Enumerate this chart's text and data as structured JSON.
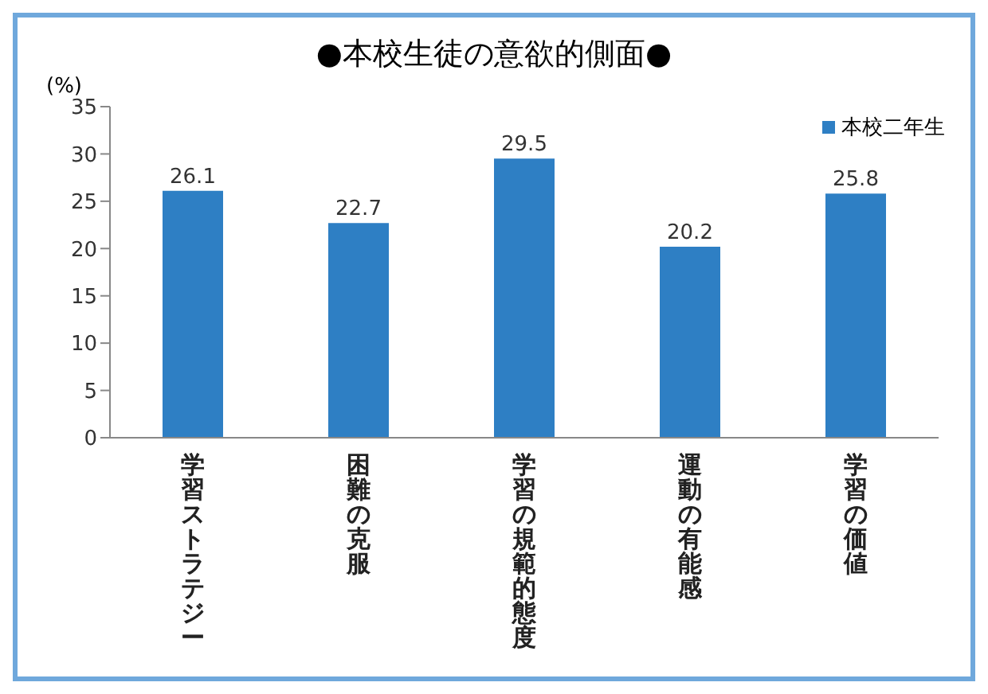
{
  "chart_data": {
    "type": "bar",
    "title": "●本校生徒の意欲的側面●",
    "ylabel": "(%)",
    "categories": [
      "学習ストラテジー",
      "困難の克服",
      "学習の規範的態度",
      "運動の有能感",
      "学習の価値"
    ],
    "series": [
      {
        "name": "本校二年生",
        "color": "#2e7fc4",
        "values": [
          26.1,
          22.7,
          29.5,
          20.2,
          25.8
        ]
      }
    ],
    "ylim": [
      0,
      35
    ],
    "yticks": [
      0,
      5,
      10,
      15,
      20,
      25,
      30,
      35
    ],
    "grid": false,
    "legend": "top right",
    "data_labels": true
  }
}
